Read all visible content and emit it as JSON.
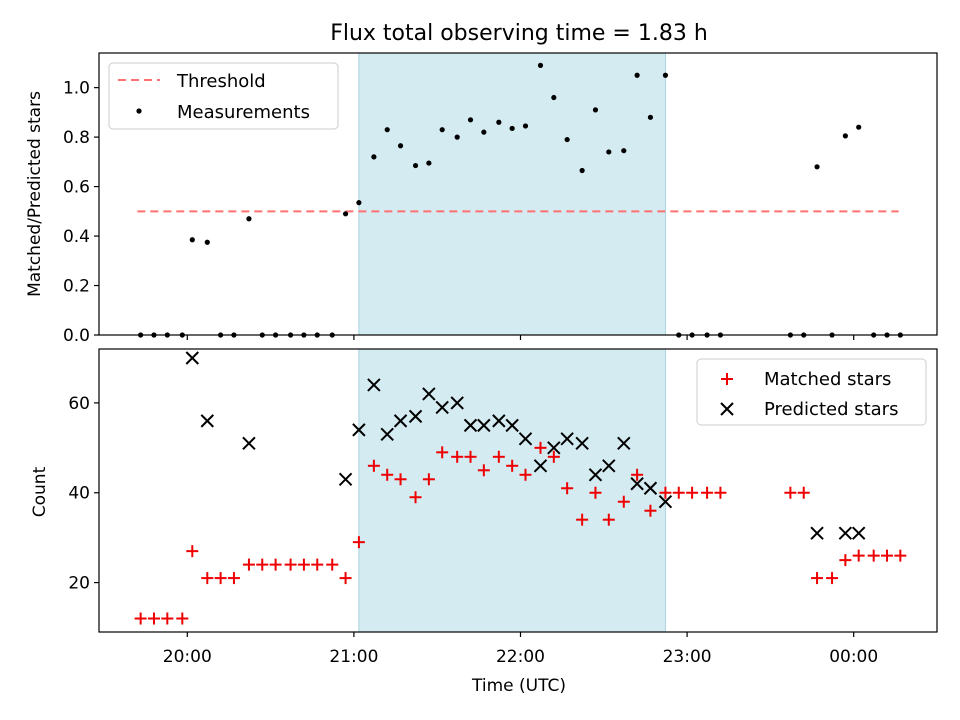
{
  "chart_data": {
    "type": "scatter",
    "title": "Flux total observing time = 1.83 h",
    "xlabel": "Time (UTC)",
    "x_ticks": [
      "20:00",
      "21:00",
      "22:00",
      "23:00",
      "00:00"
    ],
    "x_tick_hours": [
      20,
      21,
      22,
      23,
      24
    ],
    "xlim_hours": [
      19.47,
      24.5
    ],
    "shaded_span_hours": [
      21.03,
      22.87
    ],
    "shade_color": "#d4ebf2",
    "top": {
      "ylabel": "Matched/Predicted stars",
      "ylim": [
        0,
        1.14
      ],
      "yticks": [
        "0.0",
        "0.2",
        "0.4",
        "0.6",
        "0.8",
        "1.0"
      ],
      "ytick_values": [
        0,
        0.2,
        0.4,
        0.6,
        0.8,
        1.0
      ],
      "legend": [
        "Threshold",
        "Measurements"
      ],
      "threshold": {
        "name": "Threshold",
        "y": 0.5,
        "x_hours": [
          19.7,
          24.27
        ],
        "color": "#ff7070"
      },
      "measurements": {
        "name": "Measurements",
        "color": "#000000",
        "points": [
          [
            19.72,
            0
          ],
          [
            19.8,
            0
          ],
          [
            19.88,
            0
          ],
          [
            19.97,
            0
          ],
          [
            20.03,
            0.385
          ],
          [
            20.12,
            0.375
          ],
          [
            20.2,
            0
          ],
          [
            20.28,
            0
          ],
          [
            20.37,
            0.47
          ],
          [
            20.45,
            0
          ],
          [
            20.53,
            0
          ],
          [
            20.62,
            0
          ],
          [
            20.7,
            0
          ],
          [
            20.78,
            0
          ],
          [
            20.87,
            0
          ],
          [
            20.95,
            0.49
          ],
          [
            21.03,
            0.535
          ],
          [
            21.12,
            0.72
          ],
          [
            21.2,
            0.83
          ],
          [
            21.28,
            0.765
          ],
          [
            21.37,
            0.685
          ],
          [
            21.45,
            0.695
          ],
          [
            21.53,
            0.83
          ],
          [
            21.62,
            0.8
          ],
          [
            21.7,
            0.87
          ],
          [
            21.78,
            0.82
          ],
          [
            21.87,
            0.86
          ],
          [
            21.95,
            0.835
          ],
          [
            22.03,
            0.845
          ],
          [
            22.12,
            1.09
          ],
          [
            22.2,
            0.96
          ],
          [
            22.28,
            0.79
          ],
          [
            22.37,
            0.665
          ],
          [
            22.45,
            0.91
          ],
          [
            22.53,
            0.74
          ],
          [
            22.62,
            0.745
          ],
          [
            22.7,
            1.05
          ],
          [
            22.78,
            0.88
          ],
          [
            22.87,
            1.05
          ],
          [
            22.95,
            0
          ],
          [
            23.03,
            0
          ],
          [
            23.12,
            0
          ],
          [
            23.2,
            0
          ],
          [
            23.62,
            0
          ],
          [
            23.7,
            0
          ],
          [
            23.78,
            0.68
          ],
          [
            23.87,
            0
          ],
          [
            23.95,
            0.805
          ],
          [
            24.03,
            0.84
          ],
          [
            24.12,
            0
          ],
          [
            24.2,
            0
          ],
          [
            24.28,
            0
          ]
        ]
      }
    },
    "bottom": {
      "ylabel": "Count",
      "ylim": [
        9,
        72
      ],
      "yticks": [
        "20",
        "40",
        "60"
      ],
      "ytick_values": [
        20,
        40,
        60
      ],
      "legend": [
        "Matched stars",
        "Predicted stars"
      ],
      "matched": {
        "name": "Matched stars",
        "color": "#ee0000",
        "points": [
          [
            19.72,
            12
          ],
          [
            19.8,
            12
          ],
          [
            19.88,
            12
          ],
          [
            19.97,
            12
          ],
          [
            20.03,
            27
          ],
          [
            20.12,
            21
          ],
          [
            20.2,
            21
          ],
          [
            20.28,
            21
          ],
          [
            20.37,
            24
          ],
          [
            20.45,
            24
          ],
          [
            20.53,
            24
          ],
          [
            20.62,
            24
          ],
          [
            20.7,
            24
          ],
          [
            20.78,
            24
          ],
          [
            20.87,
            24
          ],
          [
            20.95,
            21
          ],
          [
            21.03,
            29
          ],
          [
            21.12,
            46
          ],
          [
            21.2,
            44
          ],
          [
            21.28,
            43
          ],
          [
            21.37,
            39
          ],
          [
            21.45,
            43
          ],
          [
            21.53,
            49
          ],
          [
            21.62,
            48
          ],
          [
            21.7,
            48
          ],
          [
            21.78,
            45
          ],
          [
            21.87,
            48
          ],
          [
            21.95,
            46
          ],
          [
            22.03,
            44
          ],
          [
            22.12,
            50
          ],
          [
            22.2,
            48
          ],
          [
            22.28,
            41
          ],
          [
            22.37,
            34
          ],
          [
            22.45,
            40
          ],
          [
            22.53,
            34
          ],
          [
            22.62,
            38
          ],
          [
            22.7,
            44
          ],
          [
            22.78,
            36
          ],
          [
            22.87,
            40
          ],
          [
            22.95,
            40
          ],
          [
            23.03,
            40
          ],
          [
            23.12,
            40
          ],
          [
            23.2,
            40
          ],
          [
            23.62,
            40
          ],
          [
            23.7,
            40
          ],
          [
            23.78,
            21
          ],
          [
            23.87,
            21
          ],
          [
            23.95,
            25
          ],
          [
            24.03,
            26
          ],
          [
            24.12,
            26
          ],
          [
            24.2,
            26
          ],
          [
            24.28,
            26
          ]
        ]
      },
      "predicted": {
        "name": "Predicted stars",
        "color": "#000000",
        "points": [
          [
            20.03,
            70
          ],
          [
            20.12,
            56
          ],
          [
            20.37,
            51
          ],
          [
            20.95,
            43
          ],
          [
            21.03,
            54
          ],
          [
            21.12,
            64
          ],
          [
            21.2,
            53
          ],
          [
            21.28,
            56
          ],
          [
            21.37,
            57
          ],
          [
            21.45,
            62
          ],
          [
            21.53,
            59
          ],
          [
            21.62,
            60
          ],
          [
            21.7,
            55
          ],
          [
            21.78,
            55
          ],
          [
            21.87,
            56
          ],
          [
            21.95,
            55
          ],
          [
            22.03,
            52
          ],
          [
            22.12,
            46
          ],
          [
            22.2,
            50
          ],
          [
            22.28,
            52
          ],
          [
            22.37,
            51
          ],
          [
            22.45,
            44
          ],
          [
            22.53,
            46
          ],
          [
            22.62,
            51
          ],
          [
            22.7,
            42
          ],
          [
            22.78,
            41
          ],
          [
            22.87,
            38
          ],
          [
            23.78,
            31
          ],
          [
            23.95,
            31
          ],
          [
            24.03,
            31
          ]
        ]
      }
    }
  }
}
